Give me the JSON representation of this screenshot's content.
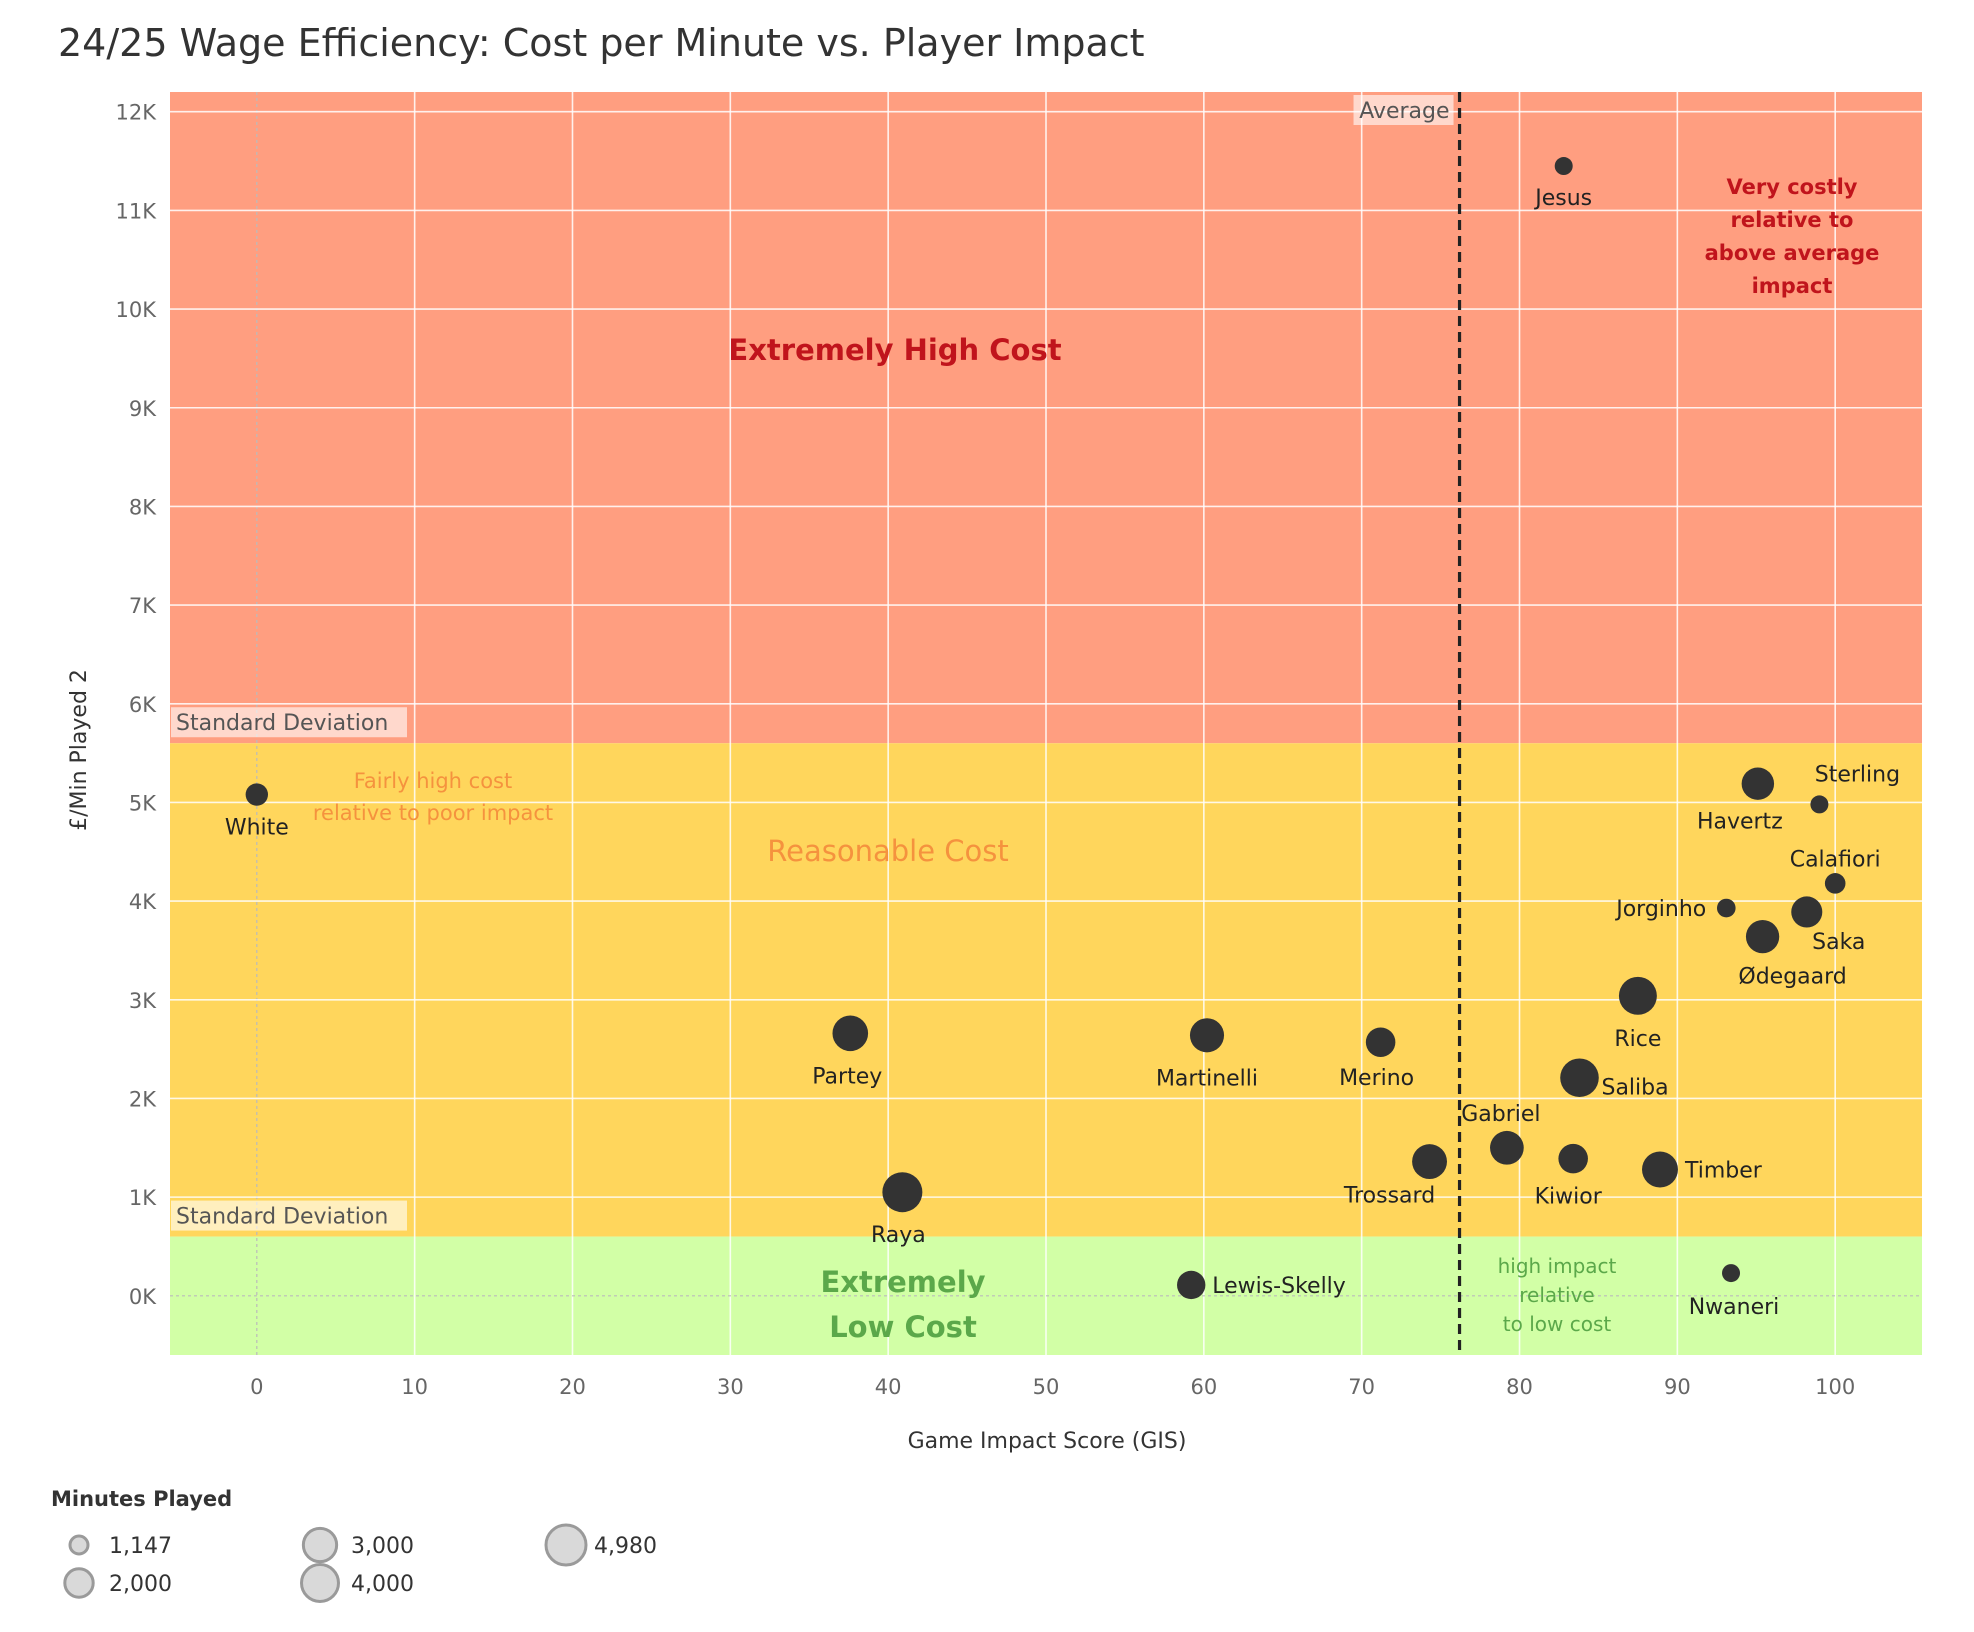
{
  "chart_data": {
    "type": "scatter",
    "title": "24/25 Wage Efficiency: Cost per Minute vs. Player Impact",
    "xlabel": "Game Impact Score (GIS)",
    "ylabel": "£/Min Played 2",
    "xlim": [
      -5.5,
      105.5
    ],
    "ylim": [
      -600,
      12200
    ],
    "x_ticks": [
      0,
      10,
      20,
      30,
      40,
      50,
      60,
      70,
      80,
      90,
      100
    ],
    "y_ticks": [
      0,
      1000,
      2000,
      3000,
      4000,
      5000,
      6000,
      7000,
      8000,
      9000,
      10000,
      11000,
      12000
    ],
    "y_tick_labels": [
      "0K",
      "1K",
      "2K",
      "3K",
      "4K",
      "5K",
      "6K",
      "7K",
      "8K",
      "9K",
      "10K",
      "11K",
      "12K"
    ],
    "grid": true,
    "average_line": {
      "x": 76.2,
      "label": "Average"
    },
    "bands": [
      {
        "name": "Extremely High Cost",
        "from": 5600,
        "to": 12200,
        "color": "#FF9E80"
      },
      {
        "name": "Reasonable Cost",
        "from": 600,
        "to": 5600,
        "color": "#FFD65C"
      },
      {
        "name": "Extremely Low Cost",
        "from": -600,
        "to": 600,
        "color": "#D2FFA6"
      }
    ],
    "std_dev_lines": [
      {
        "y": 5600,
        "label": "Standard Deviation"
      },
      {
        "y": 600,
        "label": "Standard Deviation"
      }
    ],
    "point_color": "#333333",
    "points": [
      {
        "name": "Jesus",
        "x": 82.8,
        "y": 11450,
        "minutes": 1147
      },
      {
        "name": "White",
        "x": 0,
        "y": 5080,
        "minutes": 1300
      },
      {
        "name": "Havertz",
        "x": 95.1,
        "y": 5190,
        "minutes": 2800
      },
      {
        "name": "Sterling",
        "x": 99,
        "y": 4980,
        "minutes": 1147
      },
      {
        "name": "Calafiori",
        "x": 100,
        "y": 4180,
        "minutes": 1200
      },
      {
        "name": "Jorginho",
        "x": 93.1,
        "y": 3930,
        "minutes": 1150
      },
      {
        "name": "Saka",
        "x": 98.2,
        "y": 3890,
        "minutes": 2500
      },
      {
        "name": "Ødegaard",
        "x": 95.4,
        "y": 3640,
        "minutes": 3000
      },
      {
        "name": "Rice",
        "x": 87.5,
        "y": 3040,
        "minutes": 4300
      },
      {
        "name": "Partey",
        "x": 37.6,
        "y": 2660,
        "minutes": 3600
      },
      {
        "name": "Martinelli",
        "x": 60.2,
        "y": 2640,
        "minutes": 3200
      },
      {
        "name": "Merino",
        "x": 71.2,
        "y": 2570,
        "minutes": 2200
      },
      {
        "name": "Saliba",
        "x": 83.8,
        "y": 2210,
        "minutes": 4500
      },
      {
        "name": "Gabriel",
        "x": 79.2,
        "y": 1500,
        "minutes": 3100
      },
      {
        "name": "Kiwior",
        "x": 83.4,
        "y": 1390,
        "minutes": 2200
      },
      {
        "name": "Timber",
        "x": 88.9,
        "y": 1280,
        "minutes": 3700
      },
      {
        "name": "Trossard",
        "x": 74.3,
        "y": 1360,
        "minutes": 3400
      },
      {
        "name": "Raya",
        "x": 40.9,
        "y": 1050,
        "minutes": 4980
      },
      {
        "name": "Lewis-Skelly",
        "x": 59.2,
        "y": 110,
        "minutes": 2000
      },
      {
        "name": "Nwaneri",
        "x": 93.4,
        "y": 230,
        "minutes": 1147
      }
    ],
    "annotations": [
      {
        "id": "extremely_high",
        "lines": [
          "Extremely High Cost"
        ],
        "color": "#C0141C"
      },
      {
        "id": "reasonable",
        "lines": [
          "Reasonable Cost"
        ],
        "color": "#F5923E"
      },
      {
        "id": "extremely_low",
        "lines": [
          "Extremely",
          "Low Cost"
        ],
        "color": "#5BA84A"
      },
      {
        "id": "very_costly",
        "lines": [
          "Very costly",
          "relative to",
          "above average",
          "impact"
        ],
        "color": "#C0141C"
      },
      {
        "id": "fairly_high",
        "lines": [
          "Fairly high cost",
          "relative to poor impact"
        ],
        "color": "#F5923E"
      },
      {
        "id": "high_impact",
        "lines": [
          "high impact",
          "relative",
          "to low cost"
        ],
        "color": "#5BA84A"
      }
    ],
    "legend": {
      "title": "Minutes Played",
      "placement": "bottom-left",
      "items": [
        {
          "label": "1,147",
          "minutes": 1147
        },
        {
          "label": "2,000",
          "minutes": 2000
        },
        {
          "label": "3,000",
          "minutes": 3000
        },
        {
          "label": "4,000",
          "minutes": 4000
        },
        {
          "label": "4,980",
          "minutes": 4980
        }
      ]
    }
  }
}
